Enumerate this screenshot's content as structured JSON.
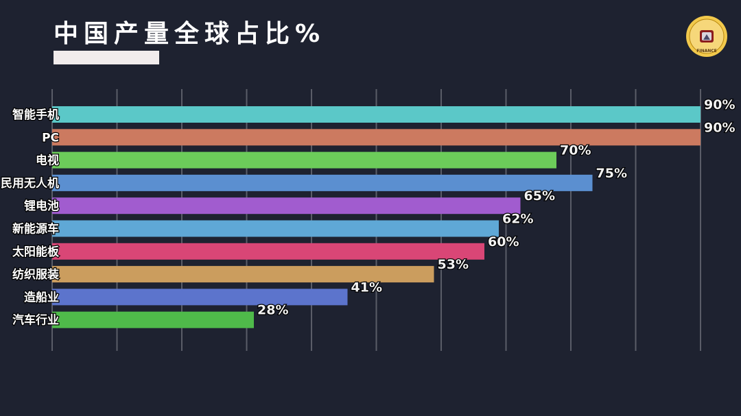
{
  "title": "中国产量全球占比%",
  "logo": {
    "icon": "finance-channel-logo",
    "text": "FINANCE",
    "colors": {
      "ring": "#f2c94c",
      "inner": "#f6d77a",
      "accent": "#8b1d1d"
    }
  },
  "chart_data": {
    "type": "bar",
    "orientation": "horizontal",
    "title": "中国产量全球占比%",
    "categories": [
      "智能手机",
      "PC",
      "电视",
      "民用无人机",
      "锂电池",
      "新能源车",
      "太阳能板",
      "纺织服装",
      "造船业",
      "汽车行业"
    ],
    "values": [
      90,
      90,
      70,
      75,
      65,
      62,
      60,
      53,
      41,
      28
    ],
    "value_labels": [
      "90%",
      "90%",
      "70%",
      "75%",
      "65%",
      "62%",
      "60%",
      "53%",
      "41%",
      "28%"
    ],
    "colors": [
      "#5bc8c8",
      "#cc7a60",
      "#6ccc5a",
      "#5b8fd0",
      "#a15ccf",
      "#5fa8d6",
      "#d94676",
      "#cb9d5e",
      "#5c74cc",
      "#4fba4a"
    ],
    "xlim": [
      0,
      90
    ],
    "grid": true,
    "grid_color": "#5a5d68",
    "legend": "none"
  }
}
